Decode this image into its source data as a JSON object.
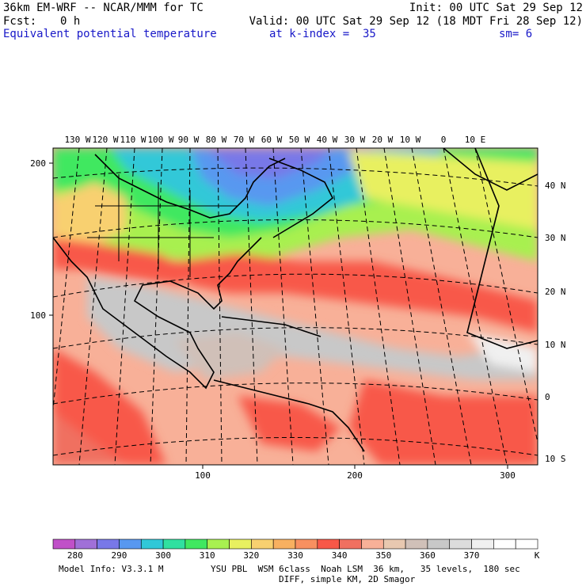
{
  "header": {
    "model": "36km EM-WRF -- NCAR/MMM for TC",
    "init": "Init: 00 UTC Sat 29 Sep 12",
    "fcst_label": "Fcst:",
    "fcst_value": "0 h",
    "valid": "Valid: 00 UTC Sat 29 Sep 12 (18 MDT Fri 28 Sep 12)",
    "field": "Equivalent potential temperature",
    "level": "at k-index =  35",
    "smooth": "sm= 6"
  },
  "map": {
    "lon_labels": [
      "130 W",
      "120 W",
      "110 W",
      "100 W",
      "90 W",
      "80 W",
      "70 W",
      "60 W",
      "50 W",
      "40 W",
      "30 W",
      "20 W",
      "10 W",
      "0",
      "10 E"
    ],
    "lat_labels": [
      "40 N",
      "30 N",
      "20 N",
      "10 N",
      "0",
      "10 S"
    ],
    "grid_left_labels": [
      "200",
      "100"
    ],
    "grid_bottom_labels": [
      "100",
      "200",
      "300"
    ]
  },
  "colorbar": {
    "colors": [
      "#c050c8",
      "#a070d8",
      "#7878e8",
      "#5898f0",
      "#30c8d8",
      "#30e0a0",
      "#40e860",
      "#a8f050",
      "#e8f060",
      "#f8d070",
      "#f8b060",
      "#f89060",
      "#f85848",
      "#f07060",
      "#f8b098",
      "#e8c8b0",
      "#d0c0b8",
      "#c8c8c8",
      "#dcdcdc",
      "#f0f0f0",
      "#ffffff",
      "#ffffff"
    ],
    "labels": [
      "280",
      "290",
      "300",
      "310",
      "320",
      "330",
      "340",
      "350",
      "360",
      "370"
    ],
    "unit": "K"
  },
  "footer": {
    "line1_left": "Model Info: V3.3.1 M",
    "line1_right": "YSU PBL  WSM 6class  Noah LSM  36 km,   35 levels,  180 sec",
    "line2": "DIFF, simple KM, 2D Smagor"
  }
}
